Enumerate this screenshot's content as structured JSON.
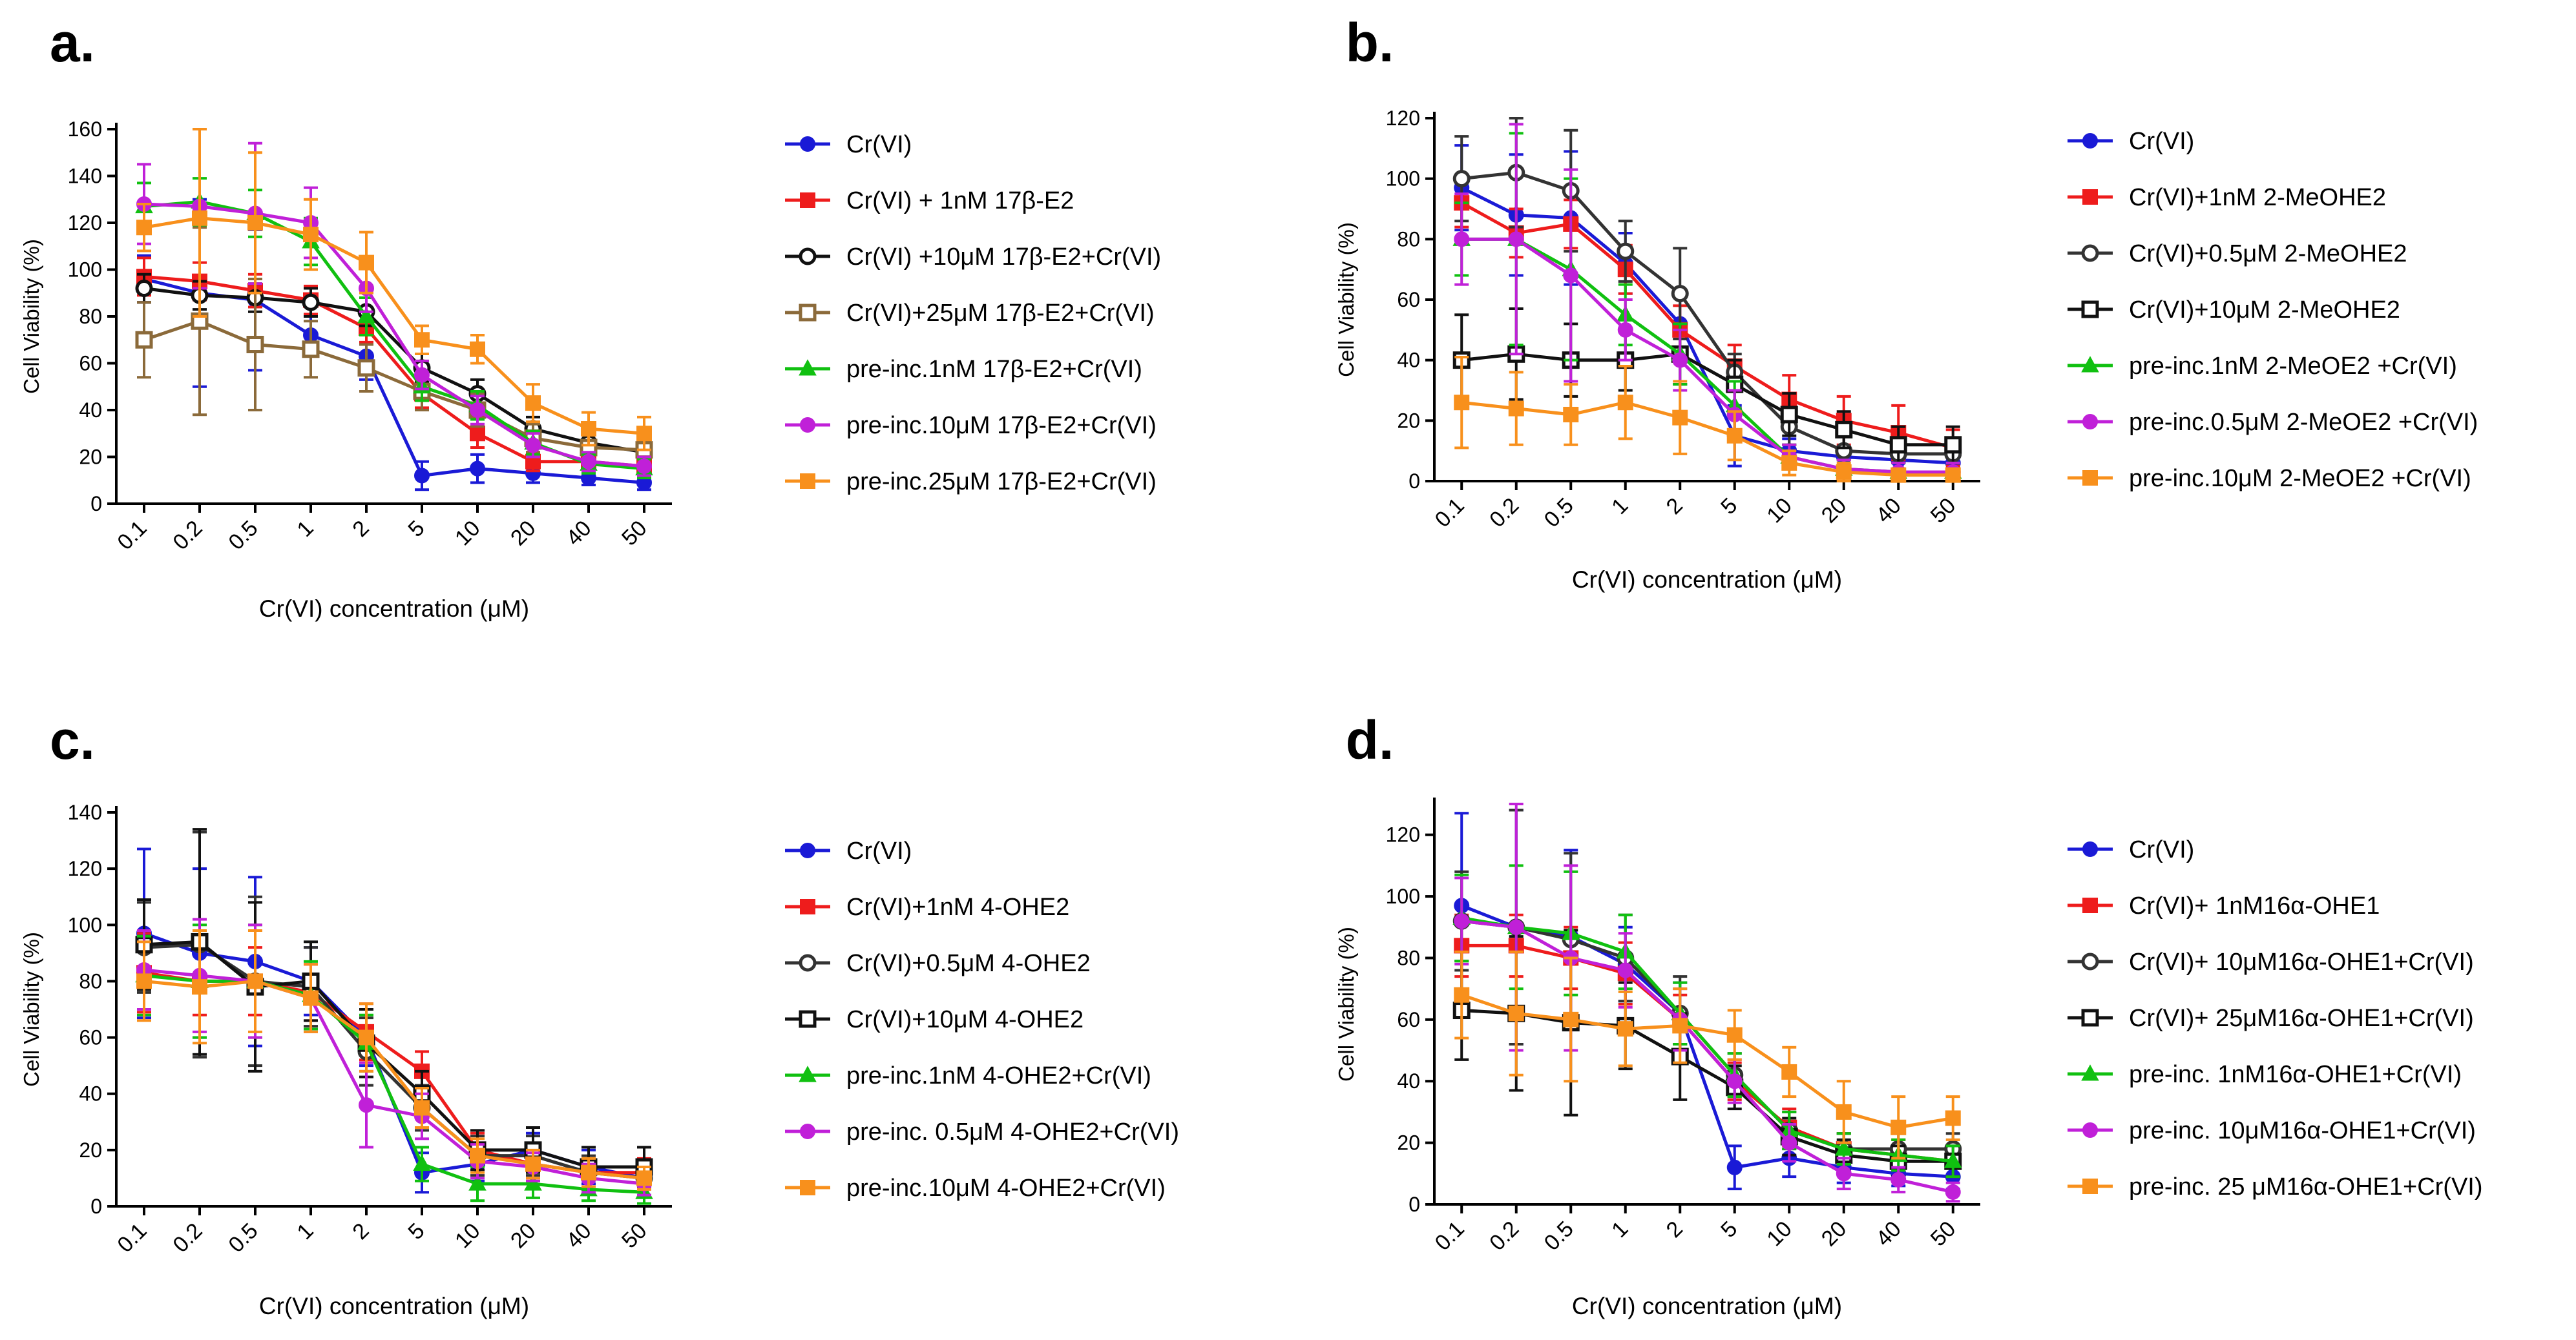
{
  "figure": {
    "palette": {
      "blue": "#1a1ad6",
      "red": "#ee1c1c",
      "black": "#111111",
      "darkgray": "#333333",
      "olive": "#8b6a3a",
      "green": "#10c010",
      "magenta": "#c020d8",
      "orange": "#f8901c"
    }
  },
  "chart_data": [
    {
      "panel": "a.",
      "type": "line",
      "title": "",
      "xlabel": "Cr(VI) concentration (μM)",
      "ylabel": "Cell Viability (%)",
      "ylim": [
        0,
        160
      ],
      "yticks": [
        0,
        20,
        40,
        60,
        80,
        100,
        120,
        140,
        160
      ],
      "categories": [
        "0.1",
        "0.2",
        "0.5",
        "1",
        "2",
        "5",
        "10",
        "20",
        "40",
        "50"
      ],
      "series": [
        {
          "name": "Cr(VI)",
          "color": "blue",
          "marker": "circle",
          "values": [
            96,
            90,
            87,
            72,
            63,
            12,
            15,
            13,
            11,
            9
          ],
          "err": [
            10,
            40,
            30,
            8,
            10,
            6,
            6,
            4,
            3,
            3
          ]
        },
        {
          "name": "Cr(VI) + 1nM 17β-E2",
          "color": "red",
          "marker": "square",
          "values": [
            97,
            95,
            91,
            87,
            75,
            47,
            30,
            18,
            18,
            16
          ],
          "err": [
            8,
            8,
            7,
            6,
            6,
            6,
            6,
            4,
            4,
            4
          ]
        },
        {
          "name": "Cr(VI) +10μM 17β-E2+Cr(VI)",
          "color": "black",
          "marker": "open-circle",
          "values": [
            92,
            89,
            88,
            86,
            82,
            58,
            47,
            32,
            26,
            22
          ],
          "err": [
            6,
            6,
            6,
            6,
            6,
            6,
            6,
            5,
            5,
            5
          ]
        },
        {
          "name": "Cr(VI)+25μM 17β-E2+Cr(VI)",
          "color": "olive",
          "marker": "open-square",
          "values": [
            70,
            78,
            68,
            66,
            58,
            48,
            40,
            28,
            24,
            23
          ],
          "err": [
            16,
            40,
            28,
            12,
            10,
            8,
            7,
            6,
            6,
            6
          ]
        },
        {
          "name": "pre-inc.1nM 17β-E2+Cr(VI)",
          "color": "green",
          "marker": "triangle",
          "values": [
            127,
            129,
            124,
            112,
            80,
            50,
            42,
            26,
            17,
            15
          ],
          "err": [
            10,
            10,
            10,
            10,
            8,
            6,
            6,
            5,
            4,
            4
          ]
        },
        {
          "name": "pre-inc.10μM 17β-E2+Cr(VI)",
          "color": "magenta",
          "marker": "circle",
          "values": [
            128,
            127,
            124,
            120,
            92,
            55,
            40,
            25,
            18,
            16
          ],
          "err": [
            17,
            35,
            30,
            15,
            10,
            6,
            6,
            5,
            4,
            4
          ]
        },
        {
          "name": "pre-inc.25μM 17β-E2+Cr(VI)",
          "color": "orange",
          "marker": "square",
          "values": [
            118,
            122,
            120,
            115,
            103,
            70,
            66,
            43,
            32,
            30
          ],
          "err": [
            10,
            42,
            30,
            15,
            13,
            6,
            6,
            8,
            7,
            7
          ]
        }
      ]
    },
    {
      "panel": "b.",
      "type": "line",
      "title": "",
      "xlabel": "Cr(VI) concentration (μM)",
      "ylabel": "Cell Viability (%)",
      "ylim": [
        0,
        120
      ],
      "yticks": [
        0,
        20,
        40,
        60,
        80,
        100,
        120
      ],
      "categories": [
        "0.1",
        "0.2",
        "0.5",
        "1",
        "2",
        "5",
        "10",
        "20",
        "40",
        "50"
      ],
      "series": [
        {
          "name": "Cr(VI)",
          "color": "blue",
          "marker": "circle",
          "values": [
            97,
            88,
            87,
            72,
            52,
            15,
            10,
            8,
            7,
            6
          ],
          "err": [
            14,
            20,
            22,
            10,
            10,
            10,
            4,
            3,
            3,
            3
          ]
        },
        {
          "name": "Cr(VI)+1nM 2-MeOHE2",
          "color": "red",
          "marker": "square",
          "values": [
            92,
            82,
            85,
            70,
            50,
            38,
            27,
            20,
            16,
            11
          ],
          "err": [
            8,
            8,
            8,
            8,
            8,
            7,
            8,
            8,
            9,
            6
          ]
        },
        {
          "name": "Cr(VI)+0.5μM 2-MeOHE2",
          "color": "darkgray",
          "marker": "open-circle",
          "values": [
            100,
            102,
            96,
            76,
            62,
            36,
            18,
            10,
            9,
            9
          ],
          "err": [
            14,
            18,
            20,
            10,
            15,
            6,
            6,
            5,
            5,
            5
          ]
        },
        {
          "name": "Cr(VI)+10μM 2-MeOHE2",
          "color": "black",
          "marker": "open-square",
          "values": [
            40,
            42,
            40,
            40,
            42,
            32,
            22,
            17,
            12,
            12
          ],
          "err": [
            15,
            15,
            12,
            10,
            10,
            8,
            7,
            6,
            6,
            6
          ]
        },
        {
          "name": "pre-inc.1nM 2-MeOE2 +Cr(VI)",
          "color": "green",
          "marker": "triangle",
          "values": [
            80,
            80,
            70,
            55,
            42,
            25,
            8,
            4,
            3,
            3
          ],
          "err": [
            12,
            35,
            30,
            10,
            10,
            8,
            4,
            3,
            3,
            3
          ]
        },
        {
          "name": "pre-inc.0.5μM 2-MeOE2 +Cr(VI)",
          "color": "magenta",
          "marker": "circle",
          "values": [
            80,
            80,
            68,
            50,
            40,
            22,
            8,
            4,
            3,
            3
          ],
          "err": [
            15,
            38,
            35,
            10,
            10,
            8,
            4,
            3,
            3,
            3
          ]
        },
        {
          "name": "pre-inc.10μM 2-MeOE2 +Cr(VI)",
          "color": "orange",
          "marker": "square",
          "values": [
            26,
            24,
            22,
            26,
            21,
            15,
            6,
            3,
            2,
            2
          ],
          "err": [
            15,
            12,
            10,
            12,
            12,
            8,
            4,
            3,
            2,
            2
          ]
        }
      ]
    },
    {
      "panel": "c.",
      "type": "line",
      "title": "",
      "xlabel": "Cr(VI) concentration (μM)",
      "ylabel": "Cell Viability (%)",
      "ylim": [
        0,
        140
      ],
      "yticks": [
        0,
        20,
        40,
        60,
        80,
        100,
        120,
        140
      ],
      "categories": [
        "0.1",
        "0.2",
        "0.5",
        "1",
        "2",
        "5",
        "10",
        "20",
        "40",
        "50"
      ],
      "series": [
        {
          "name": "Cr(VI)",
          "color": "blue",
          "marker": "circle",
          "values": [
            97,
            90,
            87,
            80,
            60,
            12,
            15,
            20,
            14,
            10
          ],
          "err": [
            30,
            30,
            30,
            12,
            10,
            7,
            6,
            6,
            6,
            6
          ]
        },
        {
          "name": "Cr(VI)+1nM 4-OHE2",
          "color": "red",
          "marker": "square",
          "values": [
            83,
            80,
            80,
            76,
            62,
            48,
            20,
            15,
            12,
            12
          ],
          "err": [
            14,
            12,
            12,
            10,
            10,
            7,
            6,
            5,
            5,
            5
          ]
        },
        {
          "name": "Cr(VI)+0.5μM 4-OHE2",
          "color": "darkgray",
          "marker": "open-circle",
          "values": [
            92,
            93,
            80,
            78,
            55,
            35,
            18,
            18,
            12,
            10
          ],
          "err": [
            16,
            40,
            30,
            14,
            12,
            8,
            7,
            7,
            6,
            6
          ]
        },
        {
          "name": "Cr(VI)+10μM 4-OHE2",
          "color": "black",
          "marker": "open-square",
          "values": [
            93,
            94,
            78,
            80,
            58,
            40,
            20,
            20,
            14,
            14
          ],
          "err": [
            16,
            40,
            30,
            14,
            12,
            8,
            7,
            8,
            7,
            7
          ]
        },
        {
          "name": "pre-inc.1nM 4-OHE2+Cr(VI)",
          "color": "green",
          "marker": "triangle",
          "values": [
            82,
            80,
            80,
            75,
            58,
            15,
            8,
            8,
            6,
            5
          ],
          "err": [
            14,
            20,
            20,
            12,
            10,
            6,
            6,
            5,
            4,
            4
          ]
        },
        {
          "name": "pre-inc. 0.5μM 4-OHE2+Cr(VI)",
          "color": "magenta",
          "marker": "circle",
          "values": [
            84,
            82,
            80,
            74,
            36,
            32,
            16,
            14,
            10,
            8
          ],
          "err": [
            14,
            20,
            20,
            12,
            15,
            8,
            6,
            5,
            5,
            4
          ]
        },
        {
          "name": "pre-inc.10μM 4-OHE2+Cr(VI)",
          "color": "orange",
          "marker": "square",
          "values": [
            80,
            78,
            80,
            74,
            60,
            35,
            18,
            15,
            12,
            10
          ],
          "err": [
            14,
            20,
            18,
            12,
            12,
            7,
            6,
            5,
            5,
            4
          ]
        }
      ]
    },
    {
      "panel": "d.",
      "type": "line",
      "title": "",
      "xlabel": "Cr(VI) concentration (μM)",
      "ylabel": "Cell Viability (%)",
      "ylim": [
        0,
        130
      ],
      "yticks": [
        0,
        20,
        40,
        60,
        80,
        100,
        120
      ],
      "categories": [
        "0.1",
        "0.2",
        "0.5",
        "1",
        "2",
        "5",
        "10",
        "20",
        "40",
        "50"
      ],
      "series": [
        {
          "name": "Cr(VI)",
          "color": "blue",
          "marker": "circle",
          "values": [
            97,
            90,
            87,
            78,
            62,
            12,
            15,
            12,
            10,
            9
          ],
          "err": [
            30,
            38,
            28,
            12,
            10,
            7,
            6,
            5,
            4,
            4
          ]
        },
        {
          "name": "Cr(VI)+ 1nM16α-OHE1",
          "color": "red",
          "marker": "square",
          "values": [
            84,
            84,
            80,
            75,
            60,
            40,
            25,
            18,
            16,
            14
          ],
          "err": [
            10,
            10,
            10,
            10,
            8,
            6,
            6,
            5,
            5,
            5
          ]
        },
        {
          "name": "Cr(VI)+ 10μM16α-OHE1+Cr(VI)",
          "color": "darkgray",
          "marker": "open-circle",
          "values": [
            92,
            90,
            86,
            80,
            62,
            42,
            24,
            18,
            18,
            18
          ],
          "err": [
            16,
            38,
            28,
            14,
            12,
            7,
            6,
            5,
            5,
            5
          ]
        },
        {
          "name": "Cr(VI)+ 25μM16α-OHE1+Cr(VI)",
          "color": "black",
          "marker": "open-square",
          "values": [
            63,
            62,
            59,
            58,
            48,
            38,
            22,
            16,
            14,
            14
          ],
          "err": [
            16,
            25,
            30,
            14,
            14,
            7,
            6,
            5,
            5,
            5
          ]
        },
        {
          "name": "pre-inc. 1nM16α-OHE1+Cr(VI)",
          "color": "green",
          "marker": "triangle",
          "values": [
            93,
            90,
            88,
            82,
            62,
            42,
            24,
            18,
            16,
            14
          ],
          "err": [
            14,
            20,
            20,
            12,
            10,
            7,
            6,
            5,
            5,
            5
          ]
        },
        {
          "name": "pre-inc. 10μM16α-OHE1+Cr(VI)",
          "color": "magenta",
          "marker": "circle",
          "values": [
            92,
            90,
            80,
            76,
            60,
            40,
            20,
            10,
            8,
            4
          ],
          "err": [
            14,
            40,
            30,
            12,
            10,
            7,
            6,
            5,
            4,
            3
          ]
        },
        {
          "name": "pre-inc. 25 μM16α-OHE1+Cr(VI)",
          "color": "orange",
          "marker": "square",
          "values": [
            68,
            62,
            60,
            57,
            58,
            55,
            43,
            30,
            25,
            28
          ],
          "err": [
            14,
            20,
            20,
            12,
            12,
            8,
            8,
            10,
            10,
            7
          ]
        }
      ]
    }
  ]
}
